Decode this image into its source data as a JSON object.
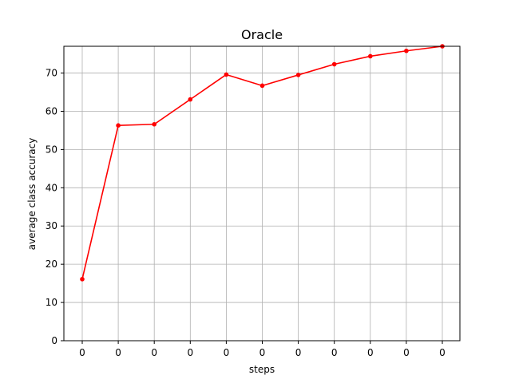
{
  "chart_data": {
    "type": "line",
    "title": "Oracle",
    "xlabel": "steps",
    "ylabel": "average class accuracy",
    "x_tick_labels": [
      "0",
      "0",
      "0",
      "0",
      "0",
      "0",
      "0",
      "0",
      "0",
      "0",
      "0"
    ],
    "y_ticks": [
      0,
      10,
      20,
      30,
      40,
      50,
      60,
      70
    ],
    "ylim": [
      0,
      77
    ],
    "grid": true,
    "legend": "none",
    "series": [
      {
        "color": "#ff0000",
        "marker": "circle",
        "values": [
          16.1,
          56.3,
          56.6,
          63.1,
          69.6,
          66.7,
          69.5,
          72.3,
          74.4,
          75.8,
          77.0
        ]
      }
    ]
  }
}
